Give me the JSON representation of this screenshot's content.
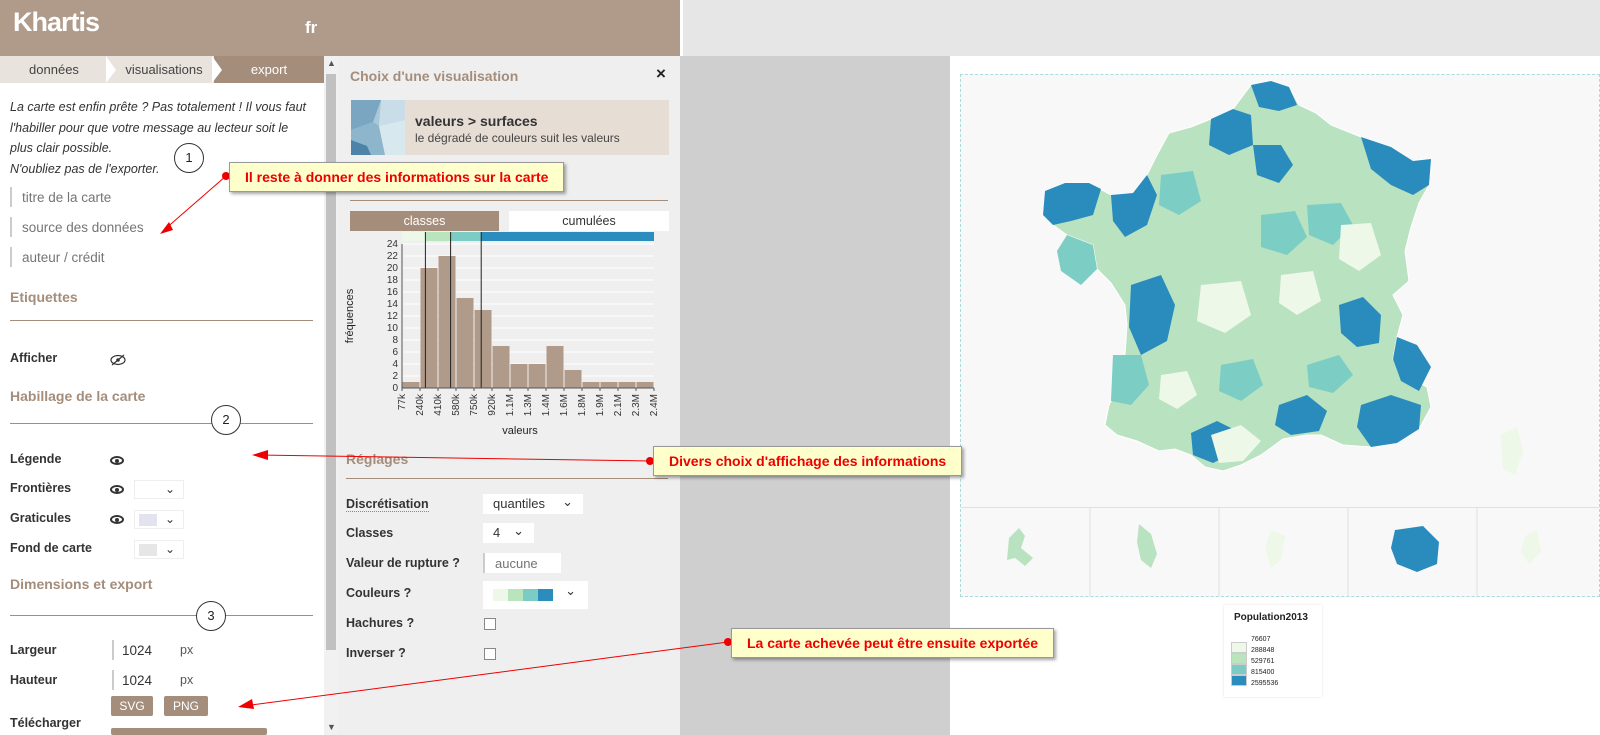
{
  "app": {
    "logo": "Khartis",
    "lang": "fr"
  },
  "breadcrumb": [
    "données",
    "visualisations",
    "export"
  ],
  "intro": {
    "line1": "La carte est enfin prête ? Pas totalement ! Il vous faut",
    "line2": "l'habiller pour que votre message au lecteur soit le",
    "line3": "plus clair possible.",
    "line4": "N'oubliez pas de l'exporter."
  },
  "fields": {
    "title_ph": "titre de la carte",
    "source_ph": "source des données",
    "author_ph": "auteur / crédit"
  },
  "labels_section": {
    "title": "Etiquettes",
    "show": "Afficher"
  },
  "dress_section": {
    "title": "Habillage de la carte",
    "legend": "Légende",
    "borders": "Frontières",
    "graticules": "Graticules",
    "background": "Fond de carte"
  },
  "export_section": {
    "title": "Dimensions et export",
    "width": "Largeur",
    "width_value": "1024",
    "height": "Hauteur",
    "height_value": "1024",
    "unit": "px",
    "download": "Télécharger",
    "svg": "SVG",
    "png": "PNG"
  },
  "steps": [
    "1",
    "2",
    "3"
  ],
  "mid": {
    "title": "Choix d'une visualisation",
    "close": "×",
    "viz_title": "valeurs > surfaces",
    "viz_desc": "le dégradé de couleurs suit les valeurs",
    "tab_classes": "classes",
    "tab_cumul": "cumulées",
    "settings_title": "Réglages",
    "discretisation": "Discrétisation",
    "discretisation_value": "quantiles",
    "classes": "Classes",
    "classes_value": "4",
    "break": "Valeur de rupture ?",
    "break_ph": "aucune",
    "colors": "Couleurs ?",
    "hatching": "Hachures ?",
    "invert": "Inverser ?"
  },
  "palette": [
    "#edf8e9",
    "#bae4bc",
    "#7bccc4",
    "#2b8cbe"
  ],
  "chart_data": {
    "type": "bar",
    "xlabel": "valeurs",
    "ylabel": "fréquences",
    "x_ticks": [
      "77k",
      "240k",
      "410k",
      "580k",
      "750k",
      "920k",
      "1.1M",
      "1.3M",
      "1.4M",
      "1.6M",
      "1.8M",
      "1.9M",
      "2.1M",
      "2.3M",
      "2.4M"
    ],
    "y_ticks": [
      0,
      2,
      4,
      6,
      8,
      10,
      12,
      14,
      16,
      18,
      20,
      22,
      24
    ],
    "ylim": [
      0,
      24
    ],
    "values": [
      1,
      20,
      22,
      15,
      13,
      7,
      4,
      4,
      7,
      3,
      1,
      1,
      1,
      1
    ],
    "class_breaks_index": [
      1.3,
      2.7,
      4.4
    ],
    "grid": true
  },
  "legend": {
    "title": "Population2013",
    "values": [
      "76607",
      "288848",
      "529761",
      "815400",
      "2595536"
    ]
  },
  "annotations": {
    "a1": "Il reste à donner des informations sur la carte",
    "a2": "Divers choix d'affichage des informations",
    "a3": "La carte achevée peut être ensuite exportée"
  }
}
